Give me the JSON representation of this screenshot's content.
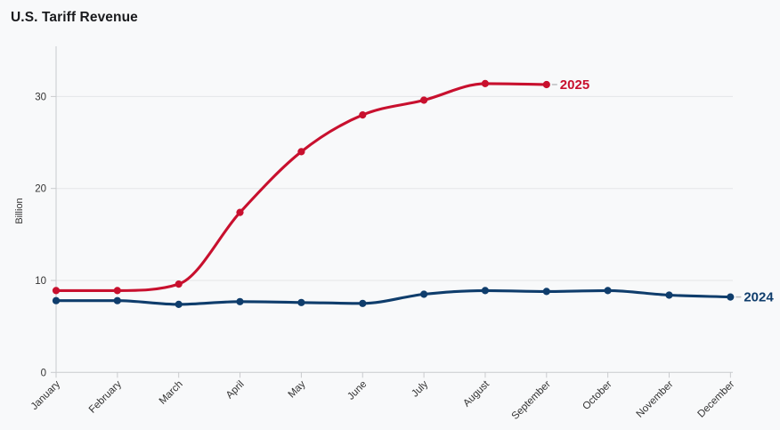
{
  "title": "U.S. Tariff Revenue",
  "colors": {
    "background": "#f8f9fa",
    "grid": "#e4e5e7",
    "axis": "#c9cbce",
    "title_text": "#1a1b1e",
    "tick_text": "#333333",
    "series_2025": "#c8102e",
    "series_2024": "#0f3d6c",
    "label_connector": "#bcbec1"
  },
  "chart_data": {
    "type": "line",
    "title": "U.S. Tariff Revenue",
    "xlabel": "",
    "ylabel": "Billion",
    "categories": [
      "January",
      "February",
      "March",
      "April",
      "May",
      "June",
      "July",
      "August",
      "September",
      "October",
      "November",
      "December"
    ],
    "yticks": [
      0,
      10,
      20,
      30
    ],
    "ylim": [
      0,
      35
    ],
    "grid": true,
    "legend_position": "end-of-line",
    "line_style": "smooth-monotone",
    "series": [
      {
        "name": "2025",
        "color": "#c8102e",
        "values": [
          8.9,
          8.9,
          9.6,
          17.4,
          24.0,
          28.0,
          29.6,
          31.4,
          31.3
        ]
      },
      {
        "name": "2024",
        "color": "#0f3d6c",
        "values": [
          7.8,
          7.8,
          7.4,
          7.7,
          7.6,
          7.5,
          8.5,
          8.9,
          8.8,
          8.9,
          8.4,
          8.2
        ]
      }
    ]
  }
}
